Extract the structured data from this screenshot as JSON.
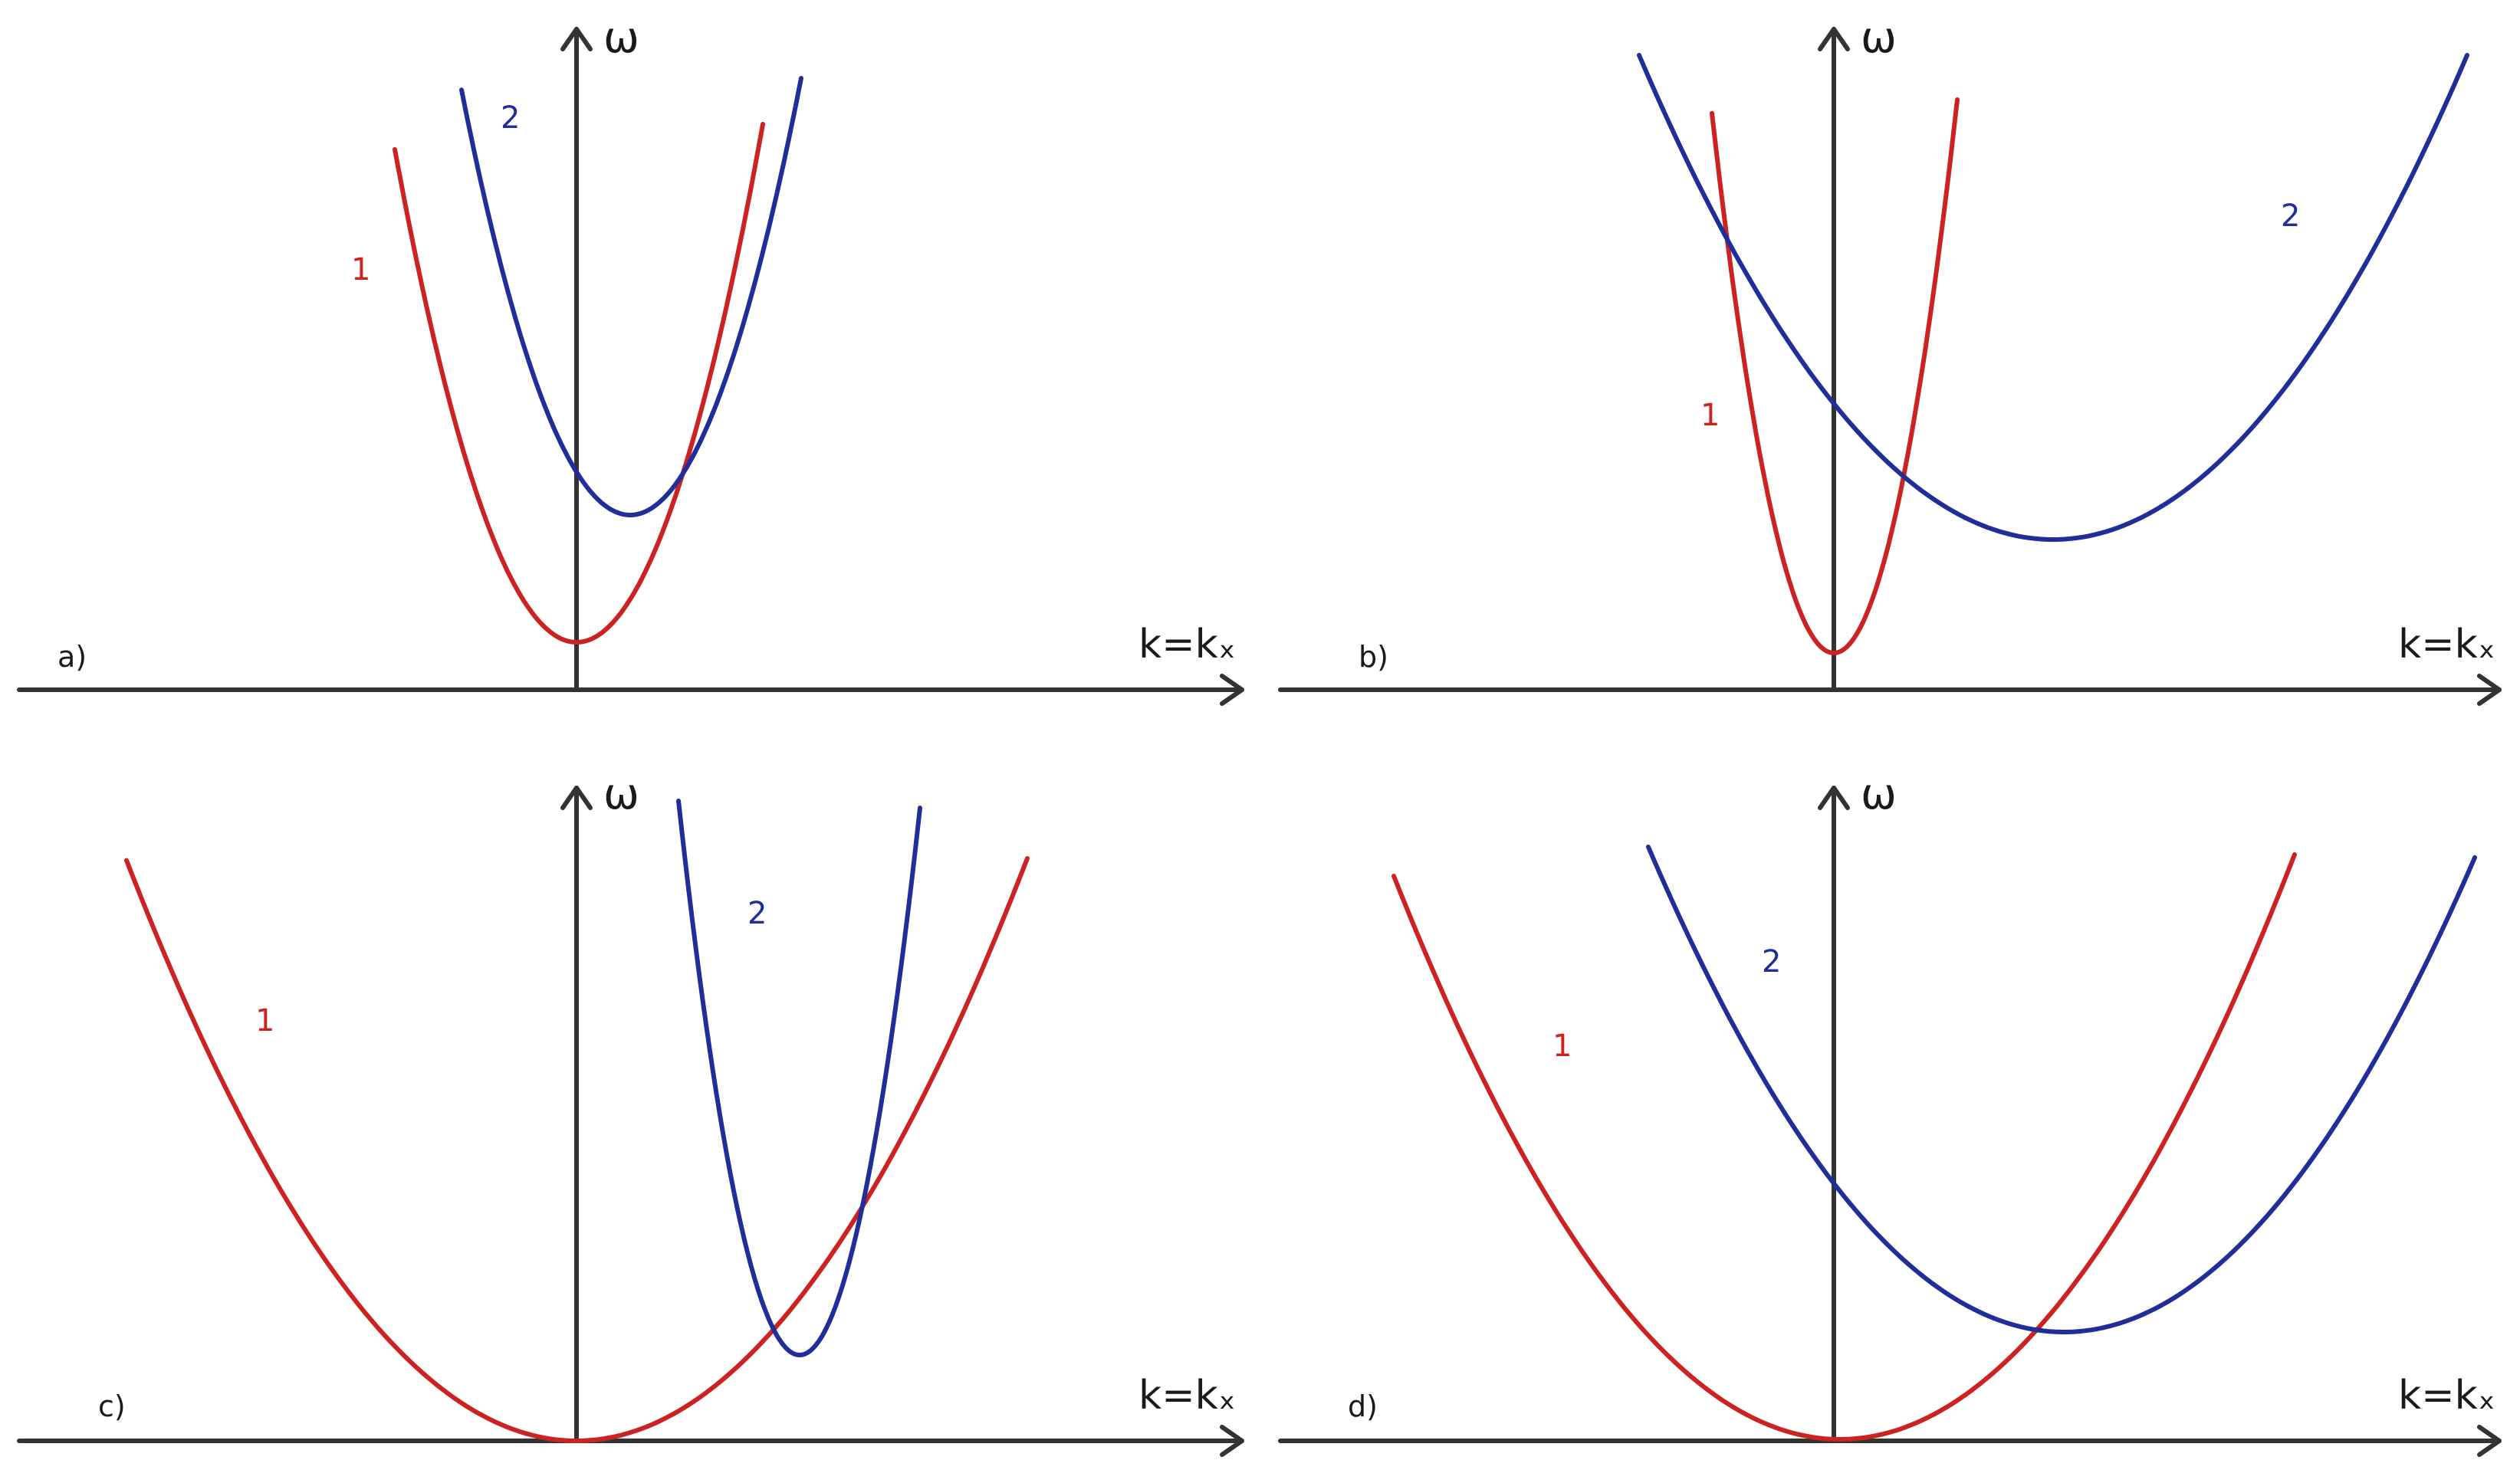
{
  "colors": {
    "curve_1": "#cc2222",
    "curve_2": "#1f2e99",
    "axis": "#333333"
  },
  "chart_data": [
    {
      "panel": "a)",
      "type": "line",
      "xlabel": "k=kₓ",
      "ylabel": "ω",
      "curve_labels": [
        "1",
        "2"
      ],
      "grid": false
    },
    {
      "panel": "b)",
      "type": "line",
      "xlabel": "k=kₓ",
      "ylabel": "ω",
      "curve_labels": [
        "1",
        "2"
      ],
      "grid": false
    },
    {
      "panel": "c)",
      "type": "line",
      "xlabel": "k=kₓ",
      "ylabel": "ω",
      "curve_labels": [
        "1",
        "2"
      ],
      "grid": false
    },
    {
      "panel": "d)",
      "type": "line",
      "xlabel": "k=kₓ",
      "ylabel": "ω",
      "curve_labels": [
        "1",
        "2"
      ],
      "grid": false
    }
  ]
}
